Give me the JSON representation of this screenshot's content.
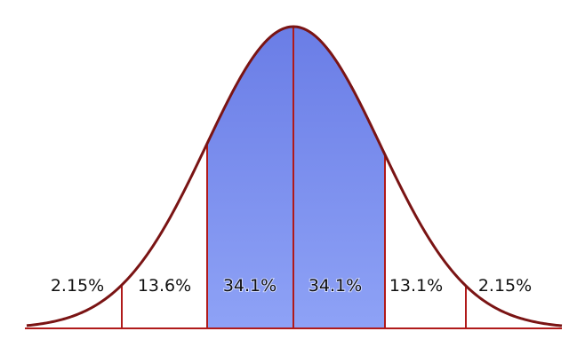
{
  "regions": [
    {
      "label": "2.15%",
      "shaded": false
    },
    {
      "label": "13.6%",
      "shaded": false
    },
    {
      "label": "34.1%",
      "shaded": true
    },
    {
      "label": "34.1%",
      "shaded": true
    },
    {
      "label": "13.1%",
      "shaded": false
    },
    {
      "label": "2.15%",
      "shaded": false
    }
  ],
  "colors": {
    "curve": "#7a1414",
    "divider": "#b01a1a",
    "shade_top": "#6a7de6",
    "shade_bottom": "#8ea2f6",
    "background": "#ffffff"
  }
}
